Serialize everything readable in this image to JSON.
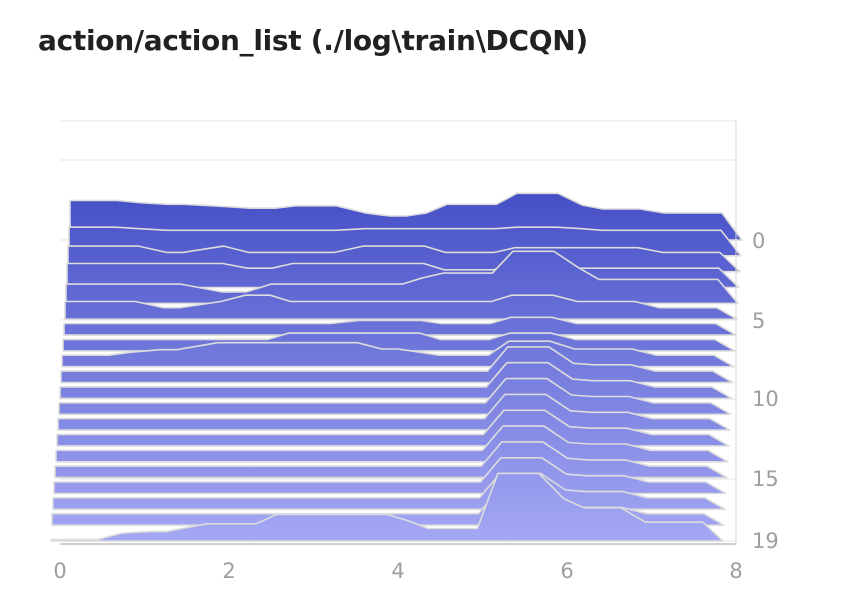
{
  "title": "action/action_list (./log\\train\\DCQN)",
  "chart_data": {
    "type": "area",
    "subtype": "ridgeline-histogram",
    "title": "action/action_list (./log\\train\\DCQN)",
    "xlabel": "",
    "ylabel": "",
    "xlim": [
      0,
      8
    ],
    "x_ticks": [
      "0",
      "2",
      "4",
      "6",
      "8"
    ],
    "y_ticks": [
      "0",
      "5",
      "10",
      "15",
      "19"
    ],
    "step_range": [
      0,
      19
    ],
    "grid": true,
    "colors": {
      "top": "#3f4ac3",
      "bottom": "#a4a8f4",
      "line": "#dcdcdc",
      "axis": "#bdbdbd"
    },
    "x": [
      0,
      0.57,
      0.86,
      1.2,
      1.4,
      1.9,
      2.2,
      2.5,
      2.75,
      3.25,
      3.6,
      3.9,
      4.1,
      4.35,
      4.6,
      4.9,
      5.2,
      5.45,
      5.95,
      6.25,
      6.5,
      6.95,
      7.25,
      7.45,
      7.95
    ],
    "steps": [
      {
        "step": 0,
        "values": [
          6.72,
          6.72,
          6.32,
          6.05,
          6.05,
          5.66,
          5.39,
          5.39,
          5.79,
          5.79,
          4.6,
          4.07,
          4.07,
          4.6,
          6.05,
          6.05,
          6.05,
          7.91,
          7.91,
          5.92,
          5.26,
          5.26,
          4.6,
          4.6,
          4.6
        ]
      },
      {
        "step": 1,
        "values": [
          4.86,
          4.86,
          4.6,
          4.33,
          4.33,
          4.33,
          4.33,
          4.33,
          4.33,
          4.33,
          4.6,
          4.6,
          4.6,
          4.6,
          4.6,
          4.6,
          4.6,
          4.86,
          4.86,
          4.6,
          4.33,
          4.33,
          4.33,
          4.33,
          4.33
        ]
      },
      {
        "step": 2,
        "values": [
          4.33,
          4.33,
          4.33,
          3.27,
          3.27,
          4.33,
          3.27,
          3.27,
          3.27,
          3.27,
          4.33,
          4.33,
          4.33,
          4.33,
          3.27,
          3.27,
          3.27,
          4.07,
          4.07,
          4.07,
          4.07,
          4.07,
          3.27,
          3.27,
          3.27
        ]
      },
      {
        "step": 3,
        "values": [
          4.07,
          4.07,
          4.07,
          4.07,
          4.07,
          4.07,
          3.27,
          3.27,
          4.07,
          4.07,
          4.07,
          4.07,
          4.07,
          4.07,
          3.01,
          3.01,
          3.01,
          4.07,
          4.07,
          3.27,
          3.27,
          3.27,
          3.27,
          3.27,
          3.27
        ]
      },
      {
        "step": 4,
        "values": [
          3.27,
          3.27,
          3.27,
          3.27,
          3.27,
          1.95,
          1.95,
          3.27,
          3.27,
          3.27,
          3.27,
          3.27,
          3.27,
          4.33,
          5.13,
          5.13,
          5.13,
          8.83,
          8.83,
          6.05,
          4.07,
          4.07,
          4.07,
          4.07,
          4.07
        ]
      },
      {
        "step": 5,
        "values": [
          3.01,
          3.01,
          3.01,
          1.95,
          1.95,
          3.01,
          4.07,
          4.07,
          3.01,
          3.01,
          3.01,
          3.01,
          3.01,
          3.01,
          3.01,
          3.01,
          3.01,
          4.07,
          4.07,
          3.01,
          3.01,
          3.01,
          1.95,
          1.95,
          1.95
        ]
      },
      {
        "step": 6,
        "values": [
          1.95,
          1.95,
          1.95,
          1.95,
          1.95,
          1.95,
          1.95,
          1.95,
          1.95,
          1.95,
          2.48,
          2.48,
          2.48,
          2.48,
          1.95,
          1.95,
          1.95,
          3.01,
          3.01,
          1.95,
          1.95,
          1.95,
          1.95,
          1.95,
          1.95
        ]
      },
      {
        "step": 7,
        "values": [
          1.95,
          1.95,
          1.95,
          1.95,
          1.95,
          1.95,
          1.95,
          1.95,
          3.01,
          3.01,
          3.01,
          3.01,
          3.01,
          3.01,
          1.95,
          1.95,
          1.95,
          3.01,
          3.01,
          1.95,
          1.95,
          1.95,
          1.95,
          1.95,
          1.95
        ]
      },
      {
        "step": 8,
        "values": [
          1.95,
          1.95,
          2.48,
          2.88,
          2.88,
          4.07,
          4.07,
          4.07,
          4.07,
          4.07,
          4.07,
          3.01,
          3.01,
          2.48,
          1.95,
          1.95,
          1.95,
          4.33,
          4.33,
          3.01,
          3.01,
          3.01,
          1.95,
          1.95,
          1.95
        ]
      },
      {
        "step": 9,
        "values": [
          1.95,
          1.95,
          1.95,
          1.95,
          1.95,
          1.95,
          1.95,
          1.95,
          1.95,
          1.95,
          1.95,
          1.95,
          1.95,
          1.95,
          1.95,
          1.95,
          1.95,
          6.05,
          6.05,
          3.27,
          3.01,
          3.01,
          1.95,
          1.95,
          1.95
        ]
      },
      {
        "step": 10,
        "values": [
          1.95,
          1.95,
          1.95,
          1.95,
          1.95,
          1.95,
          1.95,
          1.95,
          1.95,
          1.95,
          1.95,
          1.95,
          1.95,
          1.95,
          1.95,
          1.95,
          1.95,
          6.05,
          6.05,
          3.27,
          3.01,
          3.01,
          1.95,
          1.95,
          1.95
        ]
      },
      {
        "step": 11,
        "values": [
          1.95,
          1.95,
          1.95,
          1.95,
          1.95,
          1.95,
          1.95,
          1.95,
          1.95,
          1.95,
          1.95,
          1.95,
          1.95,
          1.95,
          1.95,
          1.95,
          1.95,
          6.05,
          6.05,
          3.27,
          3.01,
          3.01,
          1.95,
          1.95,
          1.95
        ]
      },
      {
        "step": 12,
        "values": [
          1.95,
          1.95,
          1.95,
          1.95,
          1.95,
          1.95,
          1.95,
          1.95,
          1.95,
          1.95,
          1.95,
          1.95,
          1.95,
          1.95,
          1.95,
          1.95,
          1.95,
          6.05,
          6.05,
          3.27,
          3.01,
          3.01,
          1.95,
          1.95,
          1.95
        ]
      },
      {
        "step": 13,
        "values": [
          1.95,
          1.95,
          1.95,
          1.95,
          1.95,
          1.95,
          1.95,
          1.95,
          1.95,
          1.95,
          1.95,
          1.95,
          1.95,
          1.95,
          1.95,
          1.95,
          1.95,
          6.05,
          6.05,
          3.27,
          3.01,
          3.01,
          1.95,
          1.95,
          1.95
        ]
      },
      {
        "step": 14,
        "values": [
          1.95,
          1.95,
          1.95,
          1.95,
          1.95,
          1.95,
          1.95,
          1.95,
          1.95,
          1.95,
          1.95,
          1.95,
          1.95,
          1.95,
          1.95,
          1.95,
          1.95,
          6.05,
          6.05,
          3.27,
          3.01,
          3.01,
          1.95,
          1.95,
          1.95
        ]
      },
      {
        "step": 15,
        "values": [
          1.95,
          1.95,
          1.95,
          1.95,
          1.95,
          1.95,
          1.95,
          1.95,
          1.95,
          1.95,
          1.95,
          1.95,
          1.95,
          1.95,
          1.95,
          1.95,
          1.95,
          6.05,
          6.05,
          3.27,
          3.01,
          3.01,
          1.95,
          1.95,
          1.95
        ]
      },
      {
        "step": 16,
        "values": [
          1.95,
          1.95,
          1.95,
          1.95,
          1.95,
          1.95,
          1.95,
          1.95,
          1.95,
          1.95,
          1.95,
          1.95,
          1.95,
          1.95,
          1.95,
          1.95,
          1.95,
          6.05,
          6.05,
          3.27,
          3.01,
          3.01,
          1.95,
          1.95,
          1.95
        ]
      },
      {
        "step": 17,
        "values": [
          1.95,
          1.95,
          1.95,
          1.95,
          1.95,
          1.95,
          1.95,
          1.95,
          1.95,
          1.95,
          1.95,
          1.95,
          1.95,
          1.95,
          1.95,
          1.95,
          1.95,
          6.05,
          6.05,
          3.27,
          3.01,
          3.01,
          1.95,
          1.95,
          1.95
        ]
      },
      {
        "step": 18,
        "values": [
          1.95,
          1.95,
          1.95,
          1.95,
          1.95,
          1.95,
          1.95,
          1.95,
          1.95,
          1.95,
          1.95,
          1.95,
          1.95,
          1.95,
          1.95,
          1.95,
          1.95,
          6.05,
          6.05,
          3.27,
          3.01,
          3.01,
          1.95,
          1.95,
          1.95
        ]
      },
      {
        "step": 19,
        "values": [
          0.25,
          0.25,
          1.32,
          1.59,
          1.59,
          2.92,
          2.92,
          2.92,
          4.51,
          4.51,
          4.51,
          4.51,
          4.51,
          3.45,
          2.12,
          2.12,
          2.12,
          11.46,
          11.46,
          7.21,
          5.62,
          5.62,
          3.18,
          3.18,
          3.18
        ]
      }
    ]
  }
}
